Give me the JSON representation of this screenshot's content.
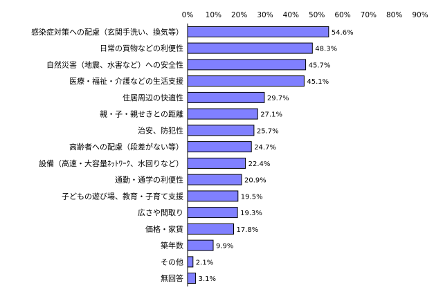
{
  "chart_data": {
    "type": "bar",
    "orientation": "horizontal",
    "title": "",
    "xlabel": "",
    "ylabel": "",
    "xlim": [
      0,
      90
    ],
    "tick_values": [
      0,
      10,
      20,
      30,
      40,
      50,
      60,
      70,
      80,
      90
    ],
    "tick_labels": [
      "0%",
      "10%",
      "20%",
      "30%",
      "40%",
      "50%",
      "60%",
      "70%",
      "80%",
      "90%"
    ],
    "axis_position": "top",
    "grid": false,
    "legend": "none",
    "bar_color": "#8080ff",
    "bar_stroke": "#000000",
    "categories": [
      "感染症対策への配慮（玄関手洗い、換気等）",
      "日常の買物などの利便性",
      "自然災害（地震、水害など）への安全性",
      "医療・福祉・介護などの生活支援",
      "住居周辺の快適性",
      "親・子・親せきとの距離",
      "治安、防犯性",
      "高齢者への配慮（段差がない等）",
      "設備（高速・大容量ﾈｯﾄﾜｰｸ、水回りなど）",
      "通勤・通学の利便性",
      "子どもの遊び場、教育・子育て支援",
      "広さや間取り",
      "価格・家賃",
      "築年数",
      "その他",
      "無回答"
    ],
    "values": [
      54.6,
      48.3,
      45.7,
      45.1,
      29.7,
      27.1,
      25.7,
      24.7,
      22.4,
      20.9,
      19.5,
      19.3,
      17.8,
      9.9,
      2.1,
      3.1
    ],
    "value_labels": [
      "54.6%",
      "48.3%",
      "45.7%",
      "45.1%",
      "29.7%",
      "27.1%",
      "25.7%",
      "24.7%",
      "22.4%",
      "20.9%",
      "19.5%",
      "19.3%",
      "17.8%",
      "9.9%",
      "2.1%",
      "3.1%"
    ]
  }
}
